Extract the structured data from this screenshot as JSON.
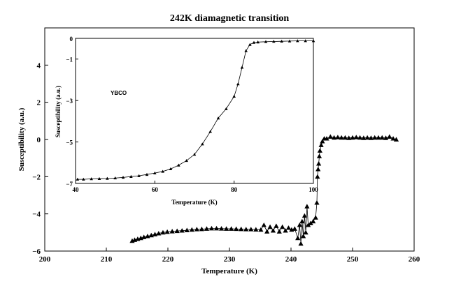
{
  "chart_data": [
    {
      "type": "line",
      "title": "242K diamagnetic transition",
      "xlabel": "Temperature (K)",
      "ylabel": "Susceptibility (a.u.)",
      "xlim": [
        200,
        260
      ],
      "ylim": [
        -6,
        6
      ],
      "xticks": [
        200,
        210,
        220,
        230,
        240,
        250,
        260
      ],
      "yticks": [
        -6,
        -4,
        -2,
        0,
        2,
        4
      ],
      "grid": false,
      "series": [
        {
          "marker": "triangle",
          "line": true,
          "color": "#000000",
          "points": [
            [
              214.2,
              -5.45
            ],
            [
              214.6,
              -5.4
            ],
            [
              215.1,
              -5.35
            ],
            [
              215.6,
              -5.3
            ],
            [
              216.1,
              -5.25
            ],
            [
              216.7,
              -5.2
            ],
            [
              217.3,
              -5.15
            ],
            [
              217.9,
              -5.1
            ],
            [
              218.5,
              -5.05
            ],
            [
              219.2,
              -5.0
            ],
            [
              219.9,
              -4.97
            ],
            [
              220.7,
              -4.94
            ],
            [
              221.5,
              -4.92
            ],
            [
              222.3,
              -4.9
            ],
            [
              223.1,
              -4.88
            ],
            [
              223.9,
              -4.85
            ],
            [
              224.7,
              -4.83
            ],
            [
              225.5,
              -4.82
            ],
            [
              226.3,
              -4.8
            ],
            [
              227.1,
              -4.78
            ],
            [
              227.9,
              -4.78
            ],
            [
              228.7,
              -4.79
            ],
            [
              229.5,
              -4.8
            ],
            [
              230.3,
              -4.8
            ],
            [
              231.1,
              -4.81
            ],
            [
              231.9,
              -4.82
            ],
            [
              232.7,
              -4.83
            ],
            [
              233.5,
              -4.83
            ],
            [
              234.3,
              -4.84
            ],
            [
              235.1,
              -4.85
            ],
            [
              235.6,
              -4.6
            ],
            [
              236.1,
              -4.95
            ],
            [
              236.6,
              -4.7
            ],
            [
              237.1,
              -4.9
            ],
            [
              237.6,
              -4.65
            ],
            [
              238.1,
              -4.95
            ],
            [
              238.6,
              -4.7
            ],
            [
              239.1,
              -4.9
            ],
            [
              239.6,
              -4.75
            ],
            [
              240.1,
              -4.85
            ],
            [
              240.6,
              -4.8
            ],
            [
              241.1,
              -5.3
            ],
            [
              241.4,
              -4.6
            ],
            [
              241.6,
              -5.6
            ],
            [
              241.8,
              -4.4
            ],
            [
              242.0,
              -5.2
            ],
            [
              242.2,
              -4.1
            ],
            [
              242.4,
              -5.0
            ],
            [
              242.6,
              -3.6
            ],
            [
              242.8,
              -4.6
            ],
            [
              243.2,
              -4.5
            ],
            [
              243.6,
              -4.4
            ],
            [
              244.0,
              -4.2
            ],
            [
              244.2,
              -3.4
            ],
            [
              244.3,
              -2.0
            ],
            [
              244.4,
              -1.6
            ],
            [
              244.5,
              -1.3
            ],
            [
              244.6,
              -0.9
            ],
            [
              244.7,
              -0.6
            ],
            [
              244.9,
              -0.3
            ],
            [
              245.1,
              -0.1
            ],
            [
              245.4,
              0.05
            ],
            [
              245.8,
              0.05
            ],
            [
              246.4,
              0.15
            ],
            [
              247.0,
              0.1
            ],
            [
              247.6,
              0.12
            ],
            [
              248.2,
              0.1
            ],
            [
              248.8,
              0.1
            ],
            [
              249.4,
              0.08
            ],
            [
              250.0,
              0.1
            ],
            [
              250.6,
              0.12
            ],
            [
              251.2,
              0.1
            ],
            [
              251.8,
              0.08
            ],
            [
              252.4,
              0.1
            ],
            [
              253.0,
              0.08
            ],
            [
              253.6,
              0.1
            ],
            [
              254.2,
              0.1
            ],
            [
              254.8,
              0.1
            ],
            [
              255.4,
              0.08
            ],
            [
              256.0,
              0.15
            ],
            [
              256.6,
              0.05
            ],
            [
              257.1,
              0.0
            ]
          ]
        }
      ]
    },
    {
      "type": "line",
      "title": "",
      "xlabel": "Temperature (K)",
      "ylabel": "Susceptibility (a.u.)",
      "xlim": [
        40,
        100
      ],
      "ylim": [
        -7,
        0
      ],
      "xticks": [
        40,
        60,
        80,
        100
      ],
      "yticks": [
        -7,
        -5,
        -3,
        -1,
        0
      ],
      "grid": false,
      "annotation": "YBCO",
      "placement": "inset upper-left",
      "series": [
        {
          "marker": "triangle",
          "line": true,
          "color": "#000000",
          "points": [
            [
              40.5,
              -6.8
            ],
            [
              42,
              -6.8
            ],
            [
              44,
              -6.78
            ],
            [
              46,
              -6.77
            ],
            [
              48,
              -6.76
            ],
            [
              50,
              -6.74
            ],
            [
              52,
              -6.71
            ],
            [
              54,
              -6.67
            ],
            [
              56,
              -6.63
            ],
            [
              58,
              -6.57
            ],
            [
              60,
              -6.5
            ],
            [
              62,
              -6.42
            ],
            [
              64,
              -6.3
            ],
            [
              66,
              -6.12
            ],
            [
              68,
              -5.9
            ],
            [
              70,
              -5.6
            ],
            [
              72,
              -5.1
            ],
            [
              74,
              -4.5
            ],
            [
              76,
              -3.85
            ],
            [
              78,
              -3.4
            ],
            [
              80,
              -2.8
            ],
            [
              81,
              -2.2
            ],
            [
              82,
              -1.4
            ],
            [
              83,
              -0.6
            ],
            [
              84,
              -0.3
            ],
            [
              85,
              -0.2
            ],
            [
              86,
              -0.18
            ],
            [
              88,
              -0.16
            ],
            [
              90,
              -0.15
            ],
            [
              92,
              -0.14
            ],
            [
              94,
              -0.13
            ],
            [
              96,
              -0.12
            ],
            [
              98,
              -0.12
            ],
            [
              100,
              -0.12
            ]
          ]
        }
      ]
    }
  ]
}
